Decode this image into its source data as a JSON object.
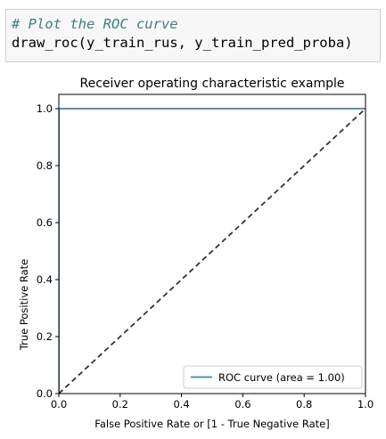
{
  "code_cell": {
    "comment": "# Plot the ROC curve",
    "code": "draw_roc(y_train_rus, y_train_pred_proba)"
  },
  "chart_data": {
    "type": "line",
    "title": "Receiver operating characteristic example",
    "xlabel": "False Positive Rate or [1 - True Negative Rate]",
    "ylabel": "True Positive Rate",
    "xlim": [
      0.0,
      1.0
    ],
    "ylim": [
      0.0,
      1.05
    ],
    "x_ticks": [
      0.0,
      0.2,
      0.4,
      0.6,
      0.8,
      1.0
    ],
    "y_ticks": [
      0.0,
      0.2,
      0.4,
      0.6,
      0.8,
      1.0
    ],
    "x_tick_labels": [
      "0.0",
      "0.2",
      "0.4",
      "0.6",
      "0.8",
      "1.0"
    ],
    "y_tick_labels": [
      "0.0",
      "0.2",
      "0.4",
      "0.6",
      "0.8",
      "1.0"
    ],
    "grid": false,
    "legend_position": "lower-right",
    "series": [
      {
        "name": "ROC curve (area = 1.00)",
        "x": [
          0.0,
          0.0,
          1.0
        ],
        "y": [
          0.0,
          1.0,
          1.0
        ],
        "color": "#5b8db8",
        "style": "solid"
      },
      {
        "x": [
          0.0,
          1.0
        ],
        "y": [
          0.0,
          1.0
        ],
        "color": "#333333",
        "style": "dashed"
      }
    ]
  }
}
